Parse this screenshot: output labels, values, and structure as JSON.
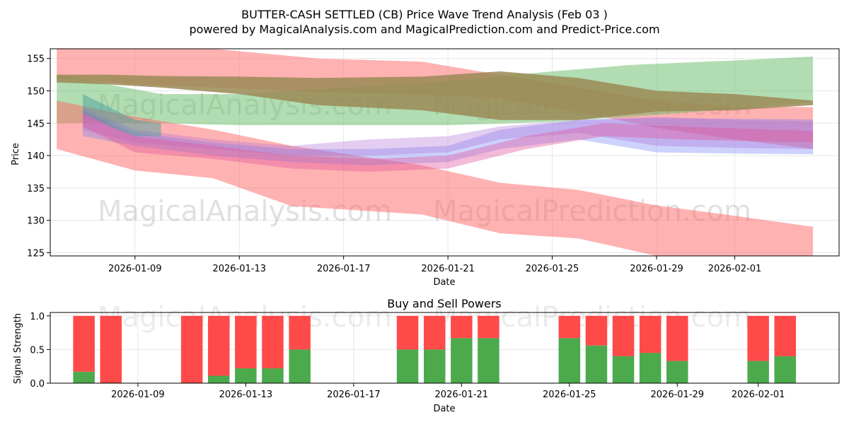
{
  "title": "BUTTER-CASH SETTLED (CB) Price Wave Trend Analysis (Feb 03 )",
  "subtitle": "powered by MagicalAnalysis.com and MagicalPrediction.com and Predict-Price.com",
  "watermarks": [
    "MagicalAnalysis.com",
    "MagicalPrediction.com"
  ],
  "colors": {
    "red": "#ff6666",
    "green": "#66bb66",
    "olive": "#9a8a55",
    "blue": "#6f7ff5",
    "purple": "#b06fd8",
    "pink": "#e0559a",
    "teal": "#4aa0a0",
    "buy": "#4caa4c",
    "sell": "#ff4a4a",
    "grid": "#e6e6e6"
  },
  "chart_data": [
    {
      "type": "area",
      "title": "",
      "xlabel": "Date",
      "ylabel": "Price",
      "xlim": [
        "2026-01-05T18:00",
        "2026-02-05T00:00"
      ],
      "ylim": [
        124.5,
        156.5
      ],
      "yticks": [
        125,
        130,
        135,
        140,
        145,
        150,
        155
      ],
      "xticks": [
        "2026-01-09",
        "2026-01-13",
        "2026-01-17",
        "2026-01-21",
        "2026-01-25",
        "2026-01-29",
        "2026-02-01"
      ],
      "grid": true,
      "bands": [
        {
          "name": "red-upper-wave",
          "color": "red",
          "opacity": 0.5,
          "x": [
            "2026-01-06",
            "2026-01-09",
            "2026-01-12",
            "2026-01-16",
            "2026-01-20",
            "2026-01-23",
            "2026-01-26",
            "2026-01-29",
            "2026-02-01",
            "2026-02-04"
          ],
          "upper": [
            157.5,
            157,
            156.5,
            155,
            154.5,
            152.5,
            150.5,
            148.5,
            147.5,
            147.5
          ],
          "lower": [
            152,
            151,
            150.5,
            149.8,
            149.4,
            148.8,
            146.7,
            144.3,
            142.5,
            141
          ]
        },
        {
          "name": "green-wave",
          "color": "green",
          "opacity": 0.5,
          "x": [
            "2026-01-06",
            "2026-01-08",
            "2026-01-10",
            "2026-01-13",
            "2026-01-17",
            "2026-01-21",
            "2026-01-25",
            "2026-01-28",
            "2026-02-01",
            "2026-02-04"
          ],
          "upper": [
            152.5,
            151,
            149.5,
            149.5,
            150.5,
            151.5,
            153,
            154,
            154.7,
            155.3
          ],
          "lower": [
            145,
            145,
            145,
            144.7,
            144.7,
            144.7,
            145.2,
            146,
            147.2,
            148.3
          ]
        },
        {
          "name": "olive-wave",
          "color": "olive",
          "opacity": 0.85,
          "x": [
            "2026-01-06",
            "2026-01-08",
            "2026-01-10",
            "2026-01-13",
            "2026-01-16",
            "2026-01-20",
            "2026-01-23",
            "2026-01-26",
            "2026-01-29",
            "2026-02-01",
            "2026-02-04"
          ],
          "upper": [
            152.5,
            152.5,
            152.3,
            152.2,
            152,
            152.2,
            153,
            152,
            150,
            149.5,
            148.5
          ],
          "lower": [
            151.3,
            151,
            150.5,
            149.5,
            147.8,
            147,
            145.5,
            145.5,
            146.8,
            147,
            147.8
          ]
        },
        {
          "name": "red-lower-wave",
          "color": "red",
          "opacity": 0.5,
          "x": [
            "2026-01-06",
            "2026-01-09",
            "2026-01-12",
            "2026-01-15",
            "2026-01-20",
            "2026-01-23",
            "2026-01-26",
            "2026-01-29",
            "2026-02-01",
            "2026-02-04"
          ],
          "upper": [
            148.5,
            146,
            144,
            141.5,
            138.5,
            135.8,
            134.7,
            132.3,
            130.7,
            129
          ],
          "lower": [
            141,
            137.7,
            136.5,
            132.2,
            130.9,
            128,
            127.2,
            124.5,
            123.3,
            122.5
          ]
        },
        {
          "name": "blue-wave",
          "color": "blue",
          "opacity": 0.35,
          "x": [
            "2026-01-07",
            "2026-01-09",
            "2026-01-12",
            "2026-01-15",
            "2026-01-18",
            "2026-01-21",
            "2026-01-23",
            "2026-01-26",
            "2026-01-29",
            "2026-02-01",
            "2026-02-04"
          ],
          "upper": [
            147,
            143.5,
            142,
            141,
            141,
            141.5,
            144,
            145.5,
            145.8,
            145.7,
            145.6
          ],
          "lower": [
            143,
            141.5,
            140,
            139,
            138.5,
            139,
            141,
            142.5,
            140.5,
            140.3,
            140.2
          ]
        },
        {
          "name": "purple-wave",
          "color": "purple",
          "opacity": 0.35,
          "x": [
            "2026-01-07",
            "2026-01-09",
            "2026-01-12",
            "2026-01-15",
            "2026-01-18",
            "2026-01-21",
            "2026-01-23",
            "2026-01-26",
            "2026-01-29",
            "2026-02-01",
            "2026-02-04"
          ],
          "upper": [
            147.5,
            144,
            142.5,
            141.5,
            142.5,
            143,
            144.5,
            145.5,
            146,
            145.5,
            145.3
          ],
          "lower": [
            144,
            142,
            141,
            140,
            140,
            140.5,
            142.5,
            143.5,
            141.5,
            141.2,
            141
          ]
        },
        {
          "name": "pink-wave",
          "color": "pink",
          "opacity": 0.4,
          "x": [
            "2026-01-07",
            "2026-01-09",
            "2026-01-12",
            "2026-01-15",
            "2026-01-18",
            "2026-01-21",
            "2026-01-24",
            "2026-01-27",
            "2026-01-30",
            "2026-02-04"
          ],
          "upper": [
            147,
            143,
            141.5,
            140,
            139.5,
            140,
            143,
            145,
            144.5,
            143.8
          ],
          "lower": [
            144.5,
            140.5,
            139.5,
            138,
            137.5,
            138,
            141,
            143,
            142.5,
            142
          ]
        },
        {
          "name": "teal-wave",
          "color": "teal",
          "opacity": 0.5,
          "x": [
            "2026-01-07",
            "2026-01-08",
            "2026-01-09",
            "2026-01-10"
          ],
          "upper": [
            149.5,
            147.5,
            145.5,
            145
          ],
          "lower": [
            146.5,
            144.5,
            143,
            143
          ]
        }
      ]
    },
    {
      "type": "bar",
      "title": "Buy and Sell Powers",
      "xlabel": "Date",
      "ylabel": "Signal Strength",
      "ylim": [
        0,
        1.05
      ],
      "yticks": [
        0.0,
        0.5,
        1.0
      ],
      "xticks": [
        "2026-01-09",
        "2026-01-13",
        "2026-01-17",
        "2026-01-21",
        "2026-01-25",
        "2026-01-29",
        "2026-02-01"
      ],
      "grid": true,
      "categories": [
        "2026-01-07",
        "2026-01-08",
        "2026-01-11",
        "2026-01-12",
        "2026-01-13",
        "2026-01-14",
        "2026-01-15",
        "2026-01-19",
        "2026-01-20",
        "2026-01-21",
        "2026-01-22",
        "2026-01-25",
        "2026-01-26",
        "2026-01-27",
        "2026-01-28",
        "2026-01-29",
        "2026-02-01",
        "2026-02-02"
      ],
      "series": [
        {
          "name": "Buy",
          "values": [
            0.17,
            0.0,
            0.0,
            0.11,
            0.22,
            0.22,
            0.5,
            0.5,
            0.5,
            0.67,
            0.67,
            0.67,
            0.56,
            0.4,
            0.45,
            0.33,
            0.33,
            0.4
          ]
        },
        {
          "name": "Sell",
          "values": [
            0.83,
            1.0,
            1.0,
            0.89,
            0.78,
            0.78,
            0.5,
            0.5,
            0.5,
            0.33,
            0.33,
            0.33,
            0.44,
            0.6,
            0.55,
            0.67,
            0.67,
            0.6
          ]
        }
      ]
    }
  ]
}
